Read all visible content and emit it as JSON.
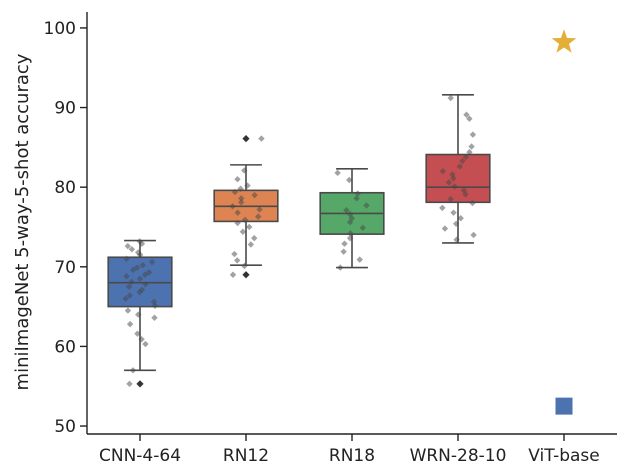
{
  "chart_data": {
    "type": "box",
    "title": "",
    "xlabel": "",
    "ylabel": "miniImageNet 5-way-5-shot accuracy",
    "ylim": [
      49,
      102
    ],
    "yticks": [
      50,
      60,
      70,
      80,
      90,
      100
    ],
    "categories": [
      "CNN-4-64",
      "RN12",
      "RN18",
      "WRN-28-10",
      "ViT-base"
    ],
    "boxes": [
      {
        "name": "CNN-4-64",
        "color": "#4c72b0",
        "whisker_low": 57.0,
        "q1": 65.0,
        "median": 68.0,
        "q3": 71.2,
        "whisker_high": 73.3,
        "outliers": [
          55.3
        ],
        "points": [
          73.2,
          72.9,
          72.6,
          72.2,
          71.8,
          71.5,
          71.0,
          70.6,
          70.2,
          69.9,
          69.6,
          69.3,
          69.0,
          68.8,
          68.5,
          68.1,
          67.8,
          67.5,
          67.1,
          66.8,
          66.4,
          66.0,
          65.6,
          65.1,
          64.5,
          64.0,
          63.6,
          62.8,
          61.6,
          60.9,
          60.3,
          57.0,
          55.3
        ]
      },
      {
        "name": "RN12",
        "color": "#dd8452",
        "whisker_low": 70.2,
        "q1": 75.7,
        "median": 77.6,
        "q3": 79.6,
        "whisker_high": 82.8,
        "outliers": [
          86.1,
          69.0
        ],
        "points": [
          86.1,
          82.1,
          81.0,
          80.2,
          79.8,
          79.4,
          79.0,
          78.6,
          78.1,
          77.6,
          77.2,
          76.8,
          76.3,
          75.9,
          75.5,
          75.0,
          74.4,
          73.6,
          72.8,
          71.6,
          70.8,
          70.1,
          69.0
        ]
      },
      {
        "name": "RN18",
        "color": "#55a868",
        "whisker_low": 69.9,
        "q1": 74.1,
        "median": 76.7,
        "q3": 79.3,
        "whisker_high": 82.3,
        "outliers": [],
        "points": [
          81.8,
          80.9,
          79.2,
          78.6,
          77.7,
          77.1,
          76.6,
          76.1,
          75.6,
          74.9,
          74.2,
          73.6,
          72.9,
          71.9,
          70.9,
          69.9
        ]
      },
      {
        "name": "WRN-28-10",
        "color": "#c44e52",
        "whisker_low": 73.0,
        "q1": 78.1,
        "median": 80.0,
        "q3": 84.1,
        "whisker_high": 91.6,
        "outliers": [],
        "points": [
          91.2,
          89.1,
          88.6,
          86.6,
          85.1,
          84.4,
          83.8,
          83.3,
          82.6,
          82.0,
          81.6,
          81.1,
          80.6,
          80.1,
          79.6,
          79.1,
          78.5,
          78.0,
          77.4,
          76.8,
          76.1,
          75.4,
          74.8,
          74.0,
          73.4
        ]
      }
    ],
    "markers": [
      {
        "category": "ViT-base",
        "shape": "star",
        "value": 98.2,
        "color": "#e5ae38"
      },
      {
        "category": "ViT-base",
        "shape": "square",
        "value": 52.5,
        "color": "#4c72b0"
      }
    ],
    "grid": false,
    "legend": "none"
  }
}
